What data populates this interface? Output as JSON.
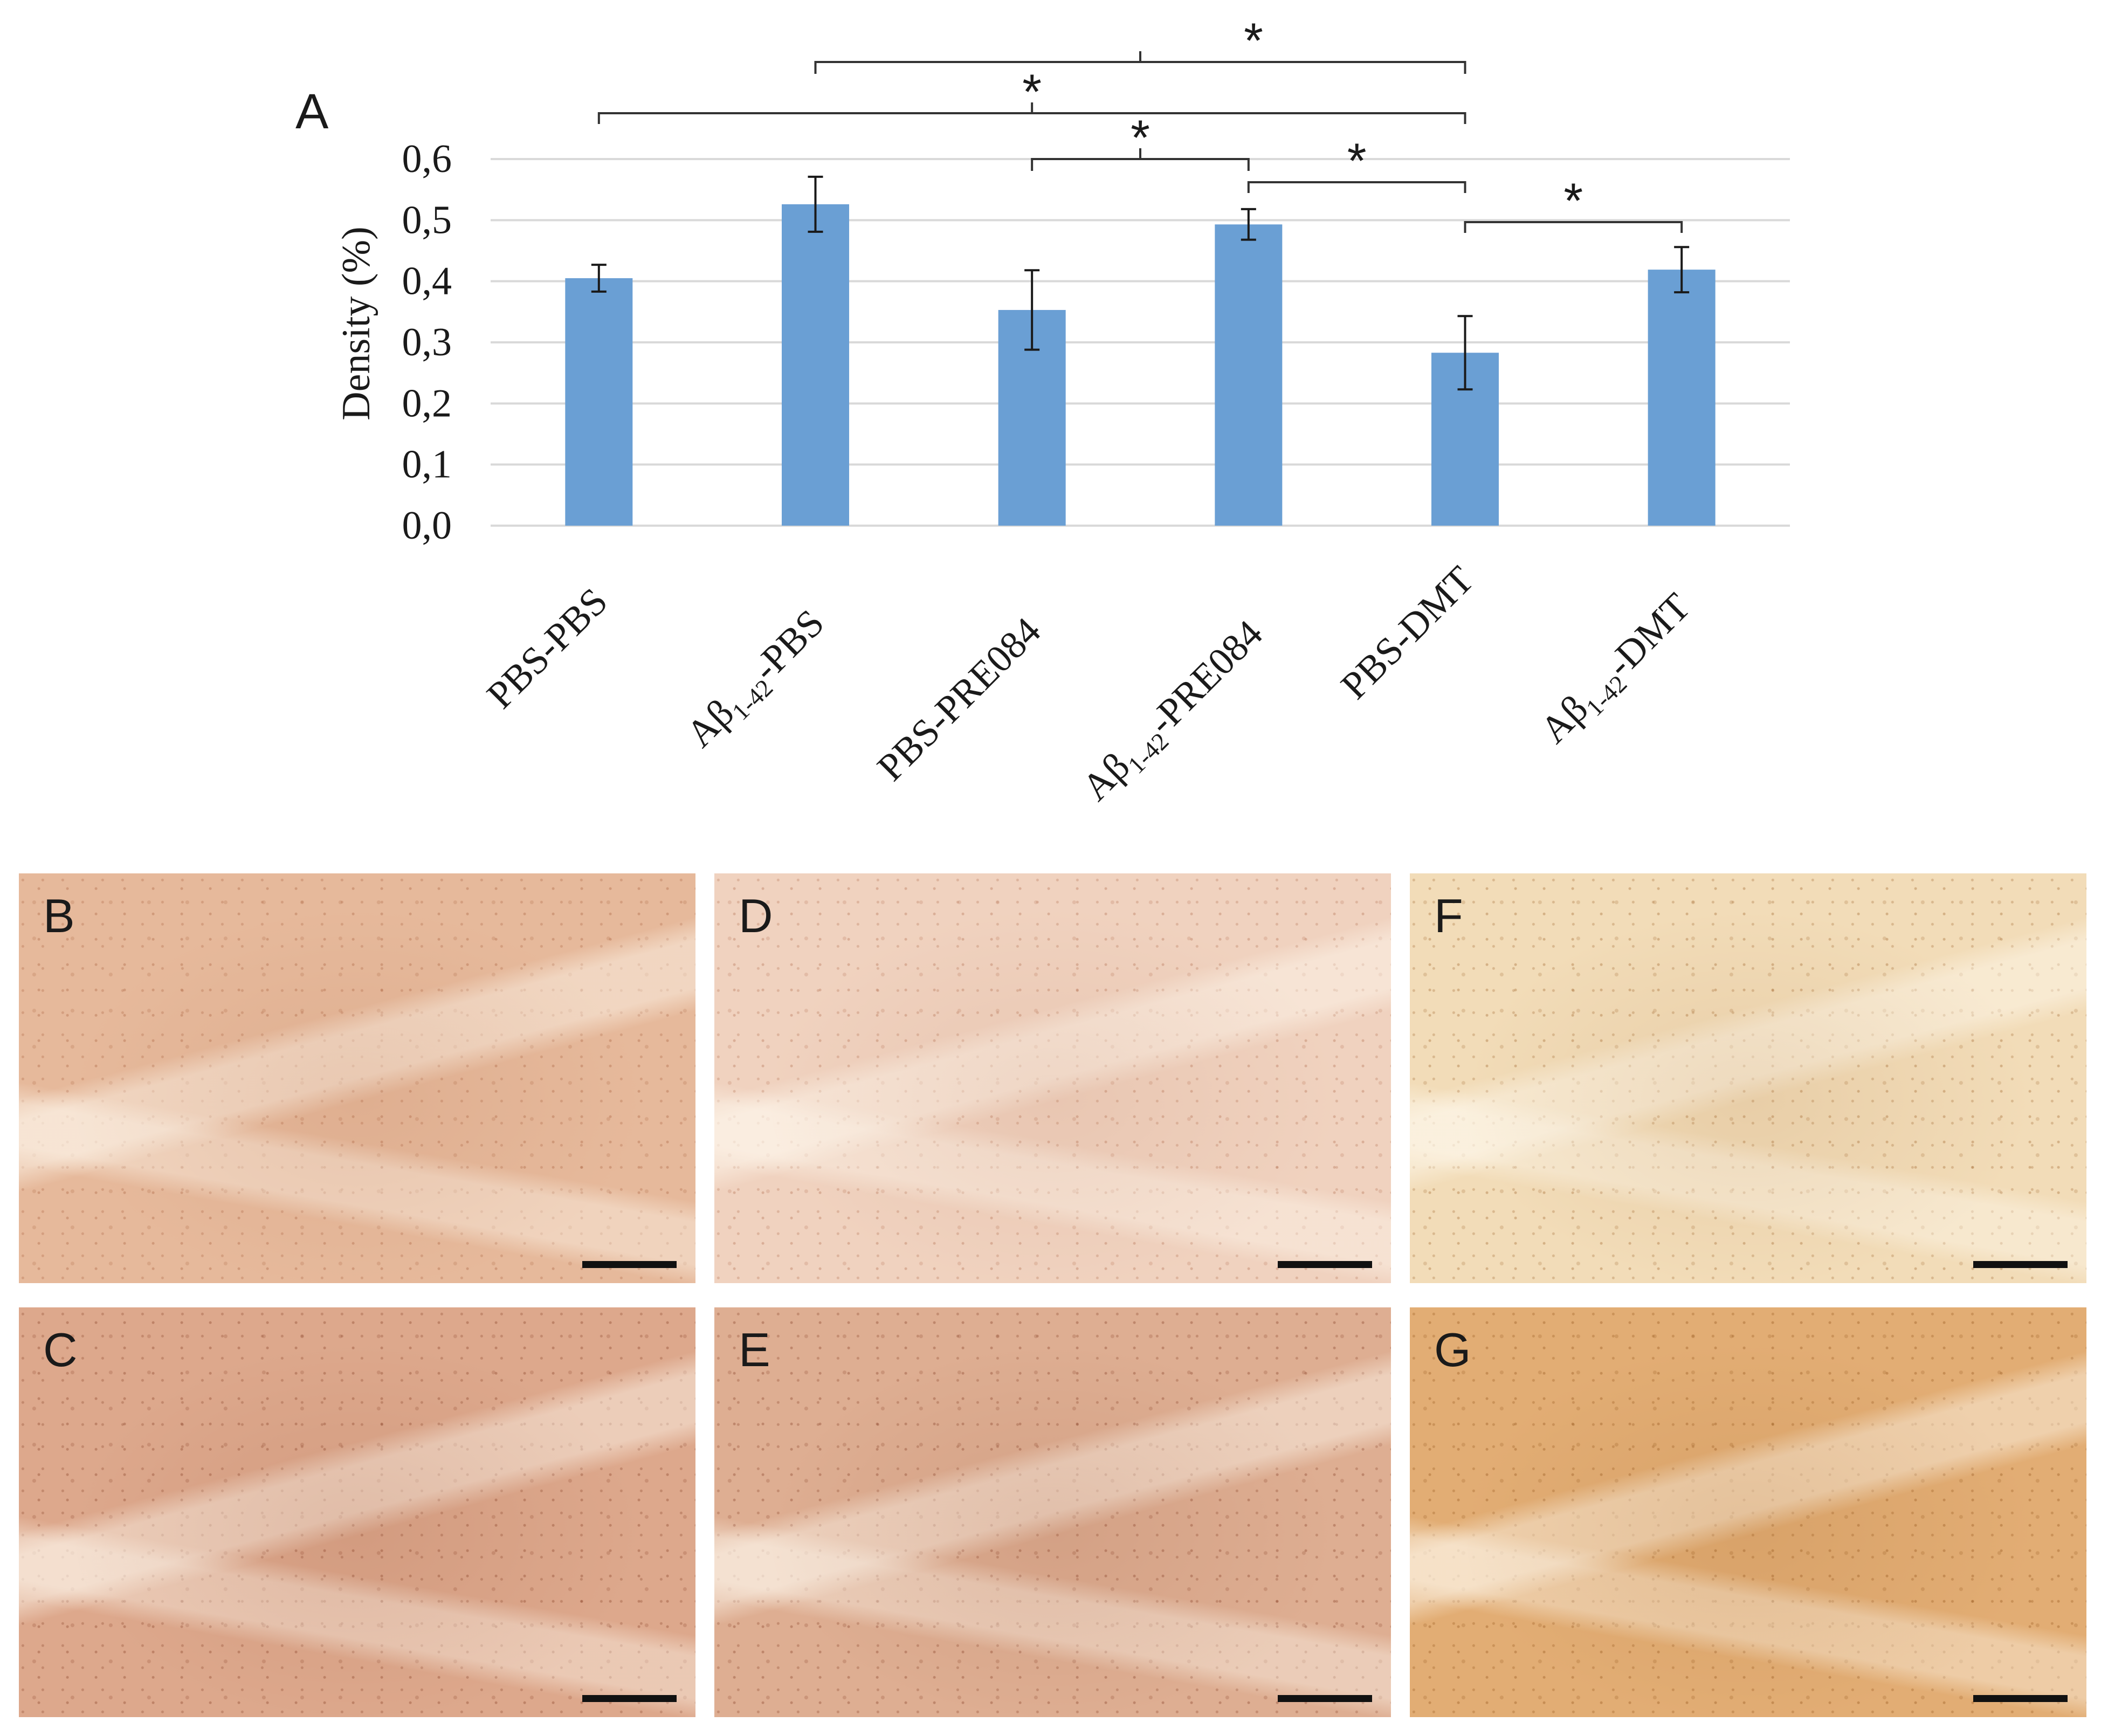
{
  "chart_data": {
    "type": "bar",
    "panel_label": "A",
    "title": "",
    "ylabel": "Density (%)",
    "xlabel": "",
    "ylim": [
      0,
      0.6
    ],
    "yticks": [
      "0,0",
      "0,1",
      "0,2",
      "0,3",
      "0,4",
      "0,5",
      "0,6"
    ],
    "grid": true,
    "categories": [
      {
        "main": "PBS-PBS",
        "sub": "",
        "suffix": ""
      },
      {
        "main": "Aβ",
        "sub": "1-42",
        "suffix": "-PBS"
      },
      {
        "main": "PBS-PRE084",
        "sub": "",
        "suffix": ""
      },
      {
        "main": "Aβ",
        "sub": "1-42",
        "suffix": "-PRE084"
      },
      {
        "main": "PBS-DMT",
        "sub": "",
        "suffix": ""
      },
      {
        "main": "Aβ",
        "sub": "1-42",
        "suffix": "-DMT"
      }
    ],
    "values": [
      0.405,
      0.526,
      0.353,
      0.493,
      0.283,
      0.419
    ],
    "errors": [
      0.022,
      0.045,
      0.065,
      0.025,
      0.06,
      0.037
    ],
    "bar_color": "#6a9fd4",
    "significance": [
      {
        "from": 1,
        "to": 4,
        "label": "*",
        "rank": 0
      },
      {
        "from": 0,
        "to": 4,
        "label": "*",
        "rank": 1
      },
      {
        "from": 2,
        "to": 3,
        "label": "*",
        "rank": 2
      },
      {
        "from": 3,
        "to": 4,
        "label": "*",
        "rank": 3
      },
      {
        "from": 4,
        "to": 5,
        "label": "*",
        "rank": 4
      }
    ]
  },
  "micrographs": [
    {
      "label": "B",
      "tone": "#e6b99b",
      "dark": "#b06a48"
    },
    {
      "label": "C",
      "tone": "#dda88c",
      "dark": "#8f4a30"
    },
    {
      "label": "D",
      "tone": "#f0d2bf",
      "dark": "#b8785a"
    },
    {
      "label": "E",
      "tone": "#deae92",
      "dark": "#8f4a30"
    },
    {
      "label": "F",
      "tone": "#f2dcb8",
      "dark": "#a8703a"
    },
    {
      "label": "G",
      "tone": "#e2ad74",
      "dark": "#9a5c22"
    }
  ]
}
